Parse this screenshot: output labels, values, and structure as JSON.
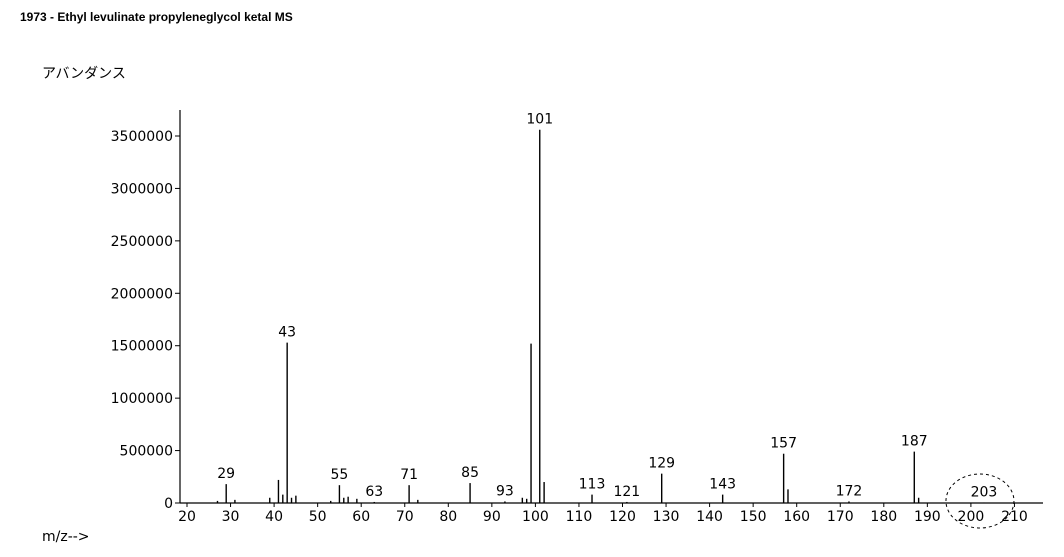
{
  "title": "1973 - Ethyl levulinate propyleneglycol ketal  MS",
  "chart_data": {
    "type": "bar",
    "title": "1973 - Ethyl levulinate propyleneglycol ketal  MS",
    "ylabel": "アバンダンス",
    "xlabel": "m/z-->",
    "xlim": [
      18,
      212
    ],
    "ylim": [
      0,
      3600000
    ],
    "x_ticks": [
      20,
      30,
      40,
      50,
      60,
      70,
      80,
      90,
      100,
      110,
      120,
      130,
      140,
      150,
      160,
      170,
      180,
      190,
      200,
      210
    ],
    "y_ticks": [
      0,
      500000,
      1000000,
      1500000,
      2000000,
      2500000,
      3000000,
      3500000
    ],
    "y_tick_labels": [
      "0",
      "500000",
      "1000000",
      "1500000",
      "2000000",
      "2500000",
      "3000000",
      "3500000"
    ],
    "peaks": [
      {
        "mz": 27,
        "abundance": 20000
      },
      {
        "mz": 29,
        "abundance": 180000
      },
      {
        "mz": 31,
        "abundance": 30000
      },
      {
        "mz": 39,
        "abundance": 50000
      },
      {
        "mz": 41,
        "abundance": 220000
      },
      {
        "mz": 42,
        "abundance": 80000
      },
      {
        "mz": 43,
        "abundance": 1530000
      },
      {
        "mz": 44,
        "abundance": 50000
      },
      {
        "mz": 45,
        "abundance": 70000
      },
      {
        "mz": 53,
        "abundance": 20000
      },
      {
        "mz": 55,
        "abundance": 170000
      },
      {
        "mz": 56,
        "abundance": 50000
      },
      {
        "mz": 57,
        "abundance": 60000
      },
      {
        "mz": 59,
        "abundance": 40000
      },
      {
        "mz": 63,
        "abundance": 10000
      },
      {
        "mz": 71,
        "abundance": 170000
      },
      {
        "mz": 73,
        "abundance": 30000
      },
      {
        "mz": 85,
        "abundance": 190000
      },
      {
        "mz": 93,
        "abundance": 15000
      },
      {
        "mz": 97,
        "abundance": 50000
      },
      {
        "mz": 98,
        "abundance": 40000
      },
      {
        "mz": 99,
        "abundance": 1520000
      },
      {
        "mz": 101,
        "abundance": 3560000
      },
      {
        "mz": 102,
        "abundance": 200000
      },
      {
        "mz": 113,
        "abundance": 80000
      },
      {
        "mz": 121,
        "abundance": 10000
      },
      {
        "mz": 129,
        "abundance": 280000
      },
      {
        "mz": 143,
        "abundance": 80000
      },
      {
        "mz": 157,
        "abundance": 470000
      },
      {
        "mz": 158,
        "abundance": 130000
      },
      {
        "mz": 172,
        "abundance": 15000
      },
      {
        "mz": 187,
        "abundance": 490000
      },
      {
        "mz": 188,
        "abundance": 50000
      },
      {
        "mz": 203,
        "abundance": 5000
      }
    ],
    "labeled_peaks": [
      {
        "mz": 29,
        "text": "29"
      },
      {
        "mz": 43,
        "text": "43"
      },
      {
        "mz": 55,
        "text": "55"
      },
      {
        "mz": 63,
        "text": "63"
      },
      {
        "mz": 71,
        "text": "71"
      },
      {
        "mz": 85,
        "text": "85"
      },
      {
        "mz": 93,
        "text": "93"
      },
      {
        "mz": 101,
        "text": "101"
      },
      {
        "mz": 113,
        "text": "113"
      },
      {
        "mz": 121,
        "text": "121"
      },
      {
        "mz": 129,
        "text": "129"
      },
      {
        "mz": 143,
        "text": "143"
      },
      {
        "mz": 157,
        "text": "157"
      },
      {
        "mz": 172,
        "text": "172"
      },
      {
        "mz": 187,
        "text": "187"
      },
      {
        "mz": 203,
        "text": "203"
      }
    ],
    "highlighted_peak": 203
  }
}
